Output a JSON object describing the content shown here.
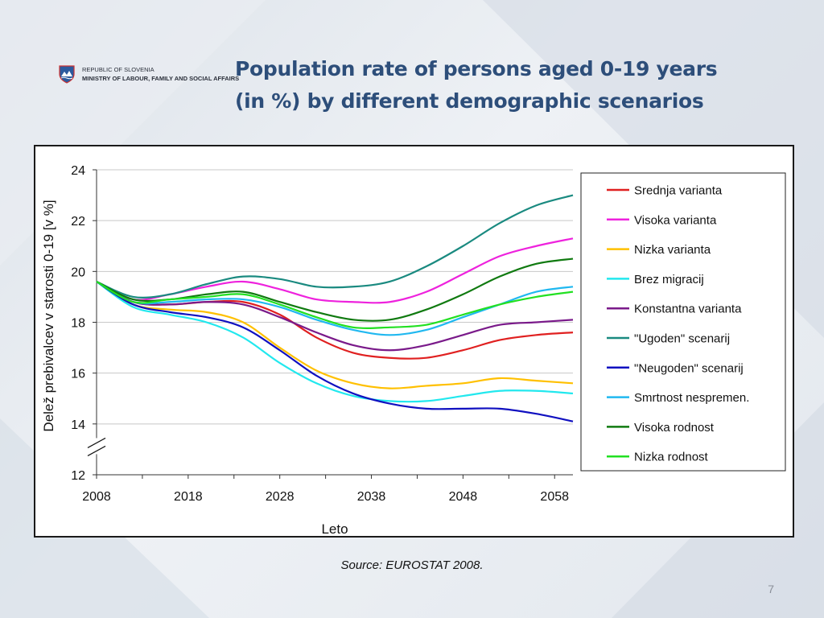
{
  "header": {
    "logo_line1": "REPUBLIC OF SLOVENIA",
    "logo_line2": "MINISTRY OF LABOUR, FAMILY AND SOCIAL AFFAIRS",
    "title_line1": "Population rate of persons aged 0-19 years",
    "title_line2": "(in %) by different demographic scenarios"
  },
  "footer": {
    "source": "Source: EUROSTAT 2008.",
    "page_number": "7"
  },
  "colors": {
    "title": "#2d4e7a"
  },
  "chart_data": {
    "type": "line",
    "xlabel": "Leto",
    "ylabel": "Delež prebivalcev v starosti 0-19 [v %]",
    "xlim": [
      2008,
      2060
    ],
    "ylim": [
      12,
      24
    ],
    "x_ticks": [
      2008,
      2018,
      2028,
      2038,
      2048,
      2058
    ],
    "y_ticks": [
      12,
      14,
      16,
      18,
      20,
      22,
      24
    ],
    "axis_break": true,
    "grid": "horizontal",
    "legend_position": "right",
    "x": [
      2008,
      2012,
      2016,
      2020,
      2024,
      2028,
      2032,
      2036,
      2040,
      2044,
      2048,
      2052,
      2056,
      2060
    ],
    "series": [
      {
        "name": "Srednja varianta",
        "color": "#e02020",
        "values": [
          19.6,
          18.8,
          18.7,
          18.8,
          18.8,
          18.3,
          17.4,
          16.8,
          16.6,
          16.6,
          16.9,
          17.3,
          17.5,
          17.6
        ]
      },
      {
        "name": "Visoka varianta",
        "color": "#ee22dd",
        "values": [
          19.6,
          18.9,
          19.1,
          19.4,
          19.6,
          19.3,
          18.9,
          18.8,
          18.8,
          19.2,
          19.9,
          20.6,
          21.0,
          21.3
        ]
      },
      {
        "name": "Nizka varianta",
        "color": "#ffc000",
        "values": [
          19.6,
          18.7,
          18.5,
          18.4,
          18.0,
          17.0,
          16.1,
          15.6,
          15.4,
          15.5,
          15.6,
          15.8,
          15.7,
          15.6
        ]
      },
      {
        "name": "Brez migracij",
        "color": "#22e8ee",
        "values": [
          19.6,
          18.6,
          18.3,
          18.0,
          17.4,
          16.4,
          15.6,
          15.1,
          14.9,
          14.9,
          15.1,
          15.3,
          15.3,
          15.2
        ]
      },
      {
        "name": "Konstantna varianta",
        "color": "#7a1a8a",
        "values": [
          19.6,
          18.8,
          18.7,
          18.8,
          18.7,
          18.2,
          17.6,
          17.1,
          16.9,
          17.1,
          17.5,
          17.9,
          18.0,
          18.1
        ]
      },
      {
        "name": "\"Ugoden\" scenarij",
        "color": "#1a8a80",
        "values": [
          19.6,
          19.0,
          19.1,
          19.5,
          19.8,
          19.7,
          19.4,
          19.4,
          19.6,
          20.2,
          21.0,
          21.9,
          22.6,
          23.0
        ]
      },
      {
        "name": "\"Neugoden\" scenarij",
        "color": "#1010c0",
        "values": [
          19.6,
          18.7,
          18.4,
          18.2,
          17.8,
          16.9,
          15.9,
          15.2,
          14.8,
          14.6,
          14.6,
          14.6,
          14.4,
          14.1
        ]
      },
      {
        "name": "Smrtnost nespremen.",
        "color": "#20b8f0",
        "values": [
          19.6,
          18.8,
          18.8,
          18.9,
          18.9,
          18.6,
          18.1,
          17.7,
          17.5,
          17.7,
          18.2,
          18.7,
          19.2,
          19.4
        ]
      },
      {
        "name": "Visoka rodnost",
        "color": "#107a10",
        "values": [
          19.6,
          18.9,
          18.9,
          19.1,
          19.2,
          18.8,
          18.4,
          18.1,
          18.1,
          18.5,
          19.1,
          19.8,
          20.3,
          20.5
        ]
      },
      {
        "name": "Nizka rodnost",
        "color": "#22e022",
        "values": [
          19.6,
          18.8,
          18.9,
          19.0,
          19.1,
          18.7,
          18.2,
          17.8,
          17.8,
          17.9,
          18.3,
          18.7,
          19.0,
          19.2
        ]
      }
    ]
  }
}
